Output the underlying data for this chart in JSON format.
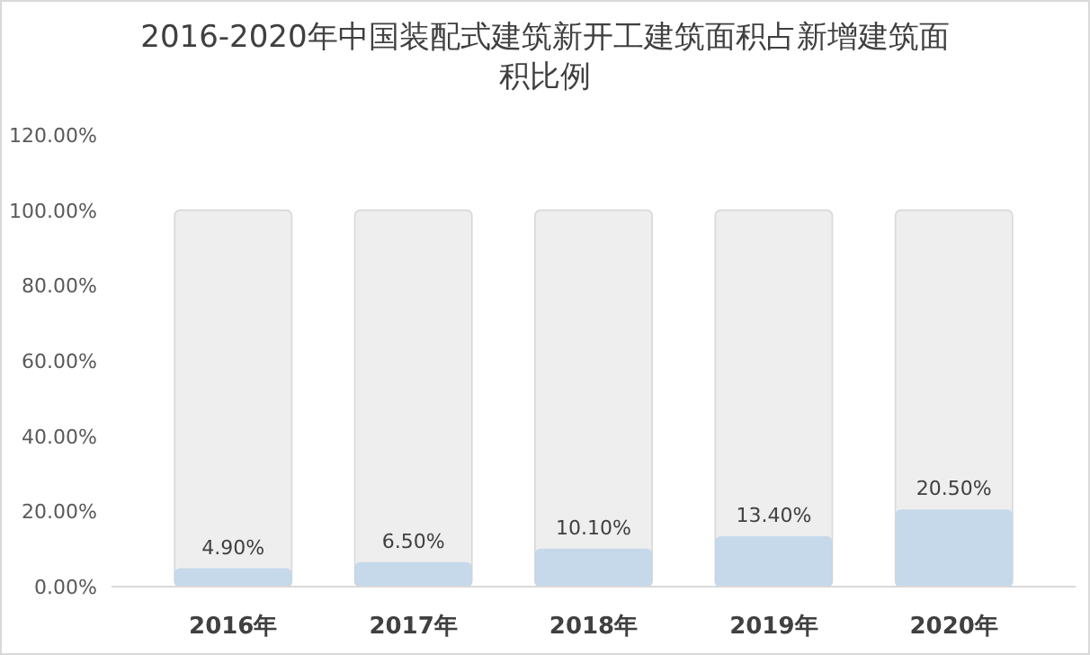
{
  "chart_data": {
    "type": "bar",
    "title": "2016-2020年中国装配式建筑新开工建筑面积占新增建筑面积比例",
    "categories": [
      "2016年",
      "2017年",
      "2018年",
      "2019年",
      "2020年"
    ],
    "series": [
      {
        "color": "#eeeeee",
        "values": [
          100,
          100,
          100,
          100,
          100
        ]
      },
      {
        "color": "#bcd3ea",
        "values": [
          4.9,
          6.5,
          10.1,
          13.4,
          20.5
        ],
        "value_labels": [
          "4.90%",
          "6.50%",
          "10.10%",
          "13.40%",
          "20.50%"
        ]
      }
    ],
    "ylim": [
      0,
      120
    ],
    "yticks": [
      {
        "value": 0,
        "label": "0.00%"
      },
      {
        "value": 20,
        "label": "20.00%"
      },
      {
        "value": 40,
        "label": "40.00%"
      },
      {
        "value": 60,
        "label": "60.00%"
      },
      {
        "value": 80,
        "label": "80.00%"
      },
      {
        "value": 100,
        "label": "100.00%"
      },
      {
        "value": 120,
        "label": "120.00%"
      }
    ]
  }
}
